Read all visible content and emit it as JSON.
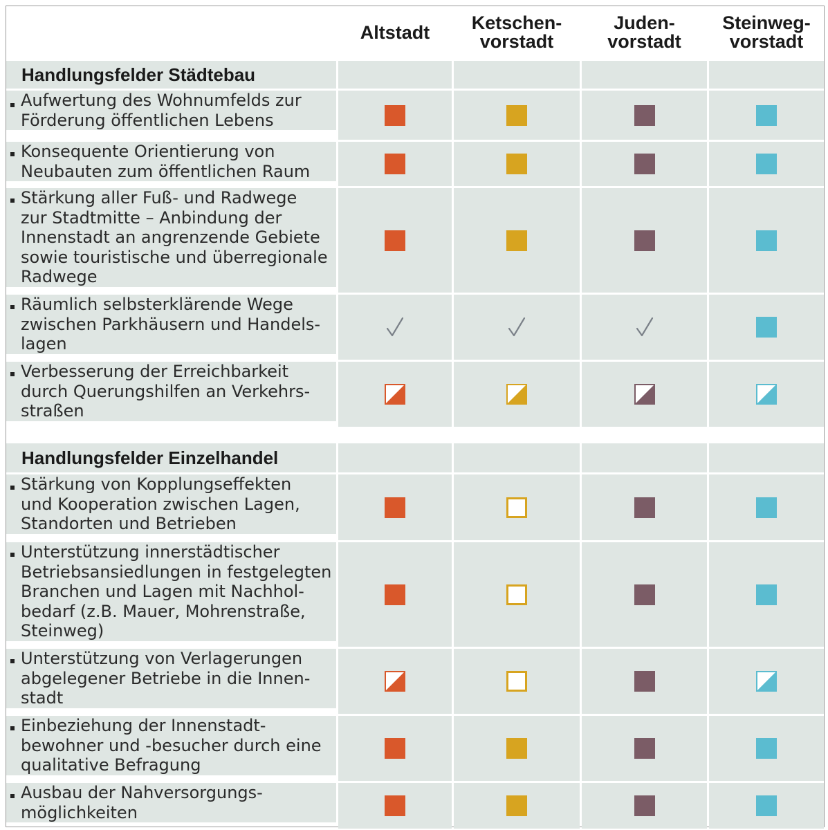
{
  "columns": [
    "Altstadt",
    "Ketschen-\nvorstadt",
    "Juden-\nvorstadt",
    "Steinweg-\nvorstadt"
  ],
  "colors": {
    "altstadt": "#d9582b",
    "ketschen": "#d7a420",
    "juden": "#7b5c66",
    "steinweg": "#5bbcd0",
    "check": "#7a8088",
    "cell_bg": "#dfe6e3"
  },
  "legend_marks": {
    "full": "filled-square",
    "half": "half-filled-square",
    "empty": "outlined-square",
    "check": "check-mark"
  },
  "sections": [
    {
      "title": "Handlungsfelder Städtebau",
      "items": [
        {
          "text": "Aufwertung des Wohnumfelds zur\nFörderung öffentlichen Lebens",
          "marks": [
            "full",
            "full",
            "full",
            "full"
          ]
        },
        {
          "text": "Konsequente Orientierung von\nNeubauten zum öffentlichen Raum",
          "marks": [
            "full",
            "full",
            "full",
            "full"
          ]
        },
        {
          "text": "Stärkung aller Fuß- und Radwege\nzur Stadtmitte – Anbindung der\nInnenstadt an angrenzende Gebiete\nsowie touristische und überregionale\nRadwege",
          "marks": [
            "full",
            "full",
            "full",
            "full"
          ]
        },
        {
          "text": "Räumlich selbsterklärende Wege\nzwischen Parkhäusern und Handels-\nlagen",
          "marks": [
            "check",
            "check",
            "check",
            "full"
          ]
        },
        {
          "text": "Verbesserung der Erreichbarkeit\ndurch Querungshilfen an Verkehrs-\nstraßen",
          "marks": [
            "half",
            "half",
            "half",
            "half"
          ]
        }
      ]
    },
    {
      "title": "Handlungsfelder Einzelhandel",
      "items": [
        {
          "text": "Stärkung von Kopplungseffekten\nund Kooperation zwischen Lagen,\nStandorten und Betrieben",
          "marks": [
            "full",
            "empty",
            "full",
            "full"
          ]
        },
        {
          "text": "Unterstützung innerstädtischer\nBetriebsansiedlungen in festgelegten\nBranchen und Lagen mit Nachhol-\nbedarf  (z.B. Mauer, Mohrenstraße,\nSteinweg)",
          "marks": [
            "full",
            "empty",
            "full",
            "full"
          ]
        },
        {
          "text": "Unterstützung von Verlagerungen\nabgelegener Betriebe in die Innen-\nstadt",
          "marks": [
            "half",
            "empty",
            "full",
            "half"
          ]
        },
        {
          "text": "Einbeziehung der Innenstadt-\nbewohner und -besucher durch eine\nqualitative Befragung",
          "marks": [
            "full",
            "full",
            "full",
            "full"
          ]
        },
        {
          "text": "Ausbau der Nahversorgungs-\nmöglichkeiten",
          "marks": [
            "full",
            "full",
            "full",
            "full"
          ]
        }
      ]
    }
  ]
}
